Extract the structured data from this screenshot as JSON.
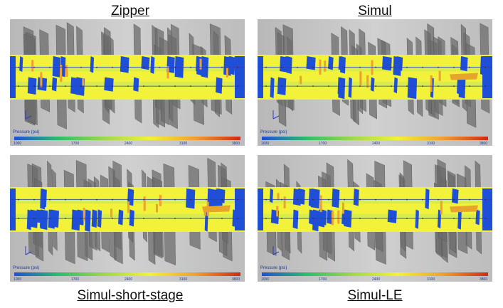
{
  "panels": [
    {
      "title": "Zipper",
      "colorbar_label": "Pressure (psi)",
      "ticks": [
        "1000",
        "1700",
        "2400",
        "3100",
        "3800"
      ]
    },
    {
      "title": "Simul",
      "colorbar_label": "Pressure (psi)",
      "ticks": [
        "1000",
        "1700",
        "2400",
        "3100",
        "3800"
      ]
    },
    {
      "title": "Simul-short-stage",
      "colorbar_label": "Pressure (psi)",
      "ticks": [
        "1000",
        "1700",
        "2400",
        "3100",
        "3800"
      ]
    },
    {
      "title": "Simul-LE",
      "colorbar_label": "Pressure (psi)",
      "ticks": [
        "1000",
        "1700",
        "2400",
        "3100",
        "3800"
      ]
    }
  ],
  "colors": {
    "background": "#c4c4c4",
    "low": "#1f4fd6",
    "mid": "#f2f23a",
    "high": "#d02a12",
    "fracture": "#6c6c6c"
  },
  "colorbar_stops": [
    "#1f4fd6",
    "#2bbf6a",
    "#9fd84a",
    "#f2f23a",
    "#f0a030",
    "#d02a12"
  ]
}
